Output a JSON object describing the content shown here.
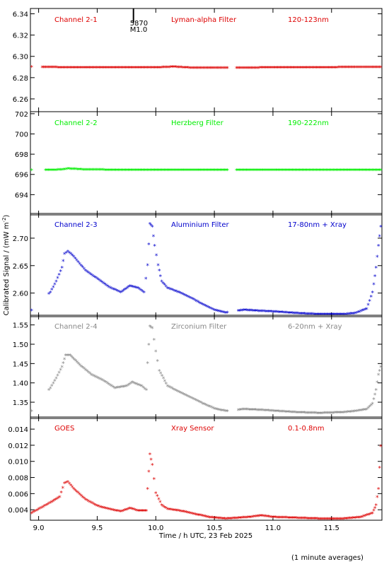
{
  "chart_data": {
    "type": "scatter",
    "xlabel": "Time / h UTC, 23 Feb 2025",
    "ylabel": "Calibrated Signal / (mW m",
    "ylabel_sup": "-2",
    "ylabel_end": ")",
    "footnote": "(1 minute averages)",
    "xlim": [
      8.93,
      11.93
    ],
    "xticks": [
      "9.0",
      "9.5",
      "10.0",
      "10.5",
      "11.0",
      "11.5"
    ],
    "flare_marker": {
      "x": 9.9,
      "label_top": "5870",
      "label_bottom": "M1.0"
    },
    "panels": [
      {
        "id": "ch1",
        "label": "Channel 2-1",
        "filter": "Lyman-alpha Filter",
        "band": "120-123nm",
        "color": "#dd0000",
        "ylim": [
          6.248,
          6.345
        ],
        "yticks": [
          "6.26",
          "6.28",
          "6.30",
          "6.32",
          "6.34"
        ],
        "points": [
          [
            8.94,
            6.2895
          ],
          [
            9.03,
            6.2892
          ],
          [
            9.06,
            6.2891
          ],
          [
            9.2,
            6.289
          ],
          [
            9.4,
            6.2889
          ],
          [
            9.6,
            6.2888
          ],
          [
            9.8,
            6.2888
          ],
          [
            10.0,
            6.2888
          ],
          [
            10.15,
            6.2895
          ],
          [
            10.3,
            6.2886
          ],
          [
            10.5,
            6.2885
          ],
          [
            10.6,
            6.2885
          ],
          [
            10.7,
            6.2886
          ],
          [
            10.9,
            6.2887
          ],
          [
            11.1,
            6.2888
          ],
          [
            11.3,
            6.2888
          ],
          [
            11.5,
            6.289
          ],
          [
            11.7,
            6.2891
          ],
          [
            11.92,
            6.2892
          ]
        ]
      },
      {
        "id": "ch2",
        "label": "Channel 2-2",
        "filter": "Herzberg Filter",
        "band": "190-222nm",
        "color": "#00ee00",
        "ylim": [
          692.0,
          702.2
        ],
        "yticks": [
          "694",
          "696",
          "698",
          "700",
          "702"
        ],
        "points": [
          [
            8.94,
            696.35
          ],
          [
            9.07,
            696.35
          ],
          [
            9.2,
            696.4
          ],
          [
            9.25,
            696.5
          ],
          [
            9.4,
            696.4
          ],
          [
            9.6,
            696.38
          ],
          [
            9.8,
            696.38
          ],
          [
            10.0,
            696.36
          ],
          [
            10.3,
            696.35
          ],
          [
            10.6,
            696.35
          ],
          [
            10.7,
            696.36
          ],
          [
            11.0,
            696.36
          ],
          [
            11.3,
            696.36
          ],
          [
            11.6,
            696.36
          ],
          [
            11.92,
            696.36
          ]
        ]
      },
      {
        "id": "ch3",
        "label": "Channel 2-3",
        "filter": "Aluminium Filter",
        "band": "17-80nm + Xray",
        "color": "#0000cc",
        "ylim": [
          2.557,
          2.745
        ],
        "yticks": [
          "2.60",
          "2.65",
          "2.70"
        ],
        "points": [
          [
            8.94,
            2.567
          ],
          [
            9.1,
            2.6
          ],
          [
            9.15,
            2.62
          ],
          [
            9.2,
            2.645
          ],
          [
            9.22,
            2.67
          ],
          [
            9.25,
            2.675
          ],
          [
            9.3,
            2.665
          ],
          [
            9.4,
            2.64
          ],
          [
            9.5,
            2.625
          ],
          [
            9.6,
            2.61
          ],
          [
            9.7,
            2.6
          ],
          [
            9.78,
            2.612
          ],
          [
            9.85,
            2.608
          ],
          [
            9.9,
            2.6
          ],
          [
            9.93,
            2.65
          ],
          [
            9.95,
            2.725
          ],
          [
            9.97,
            2.72
          ],
          [
            9.99,
            2.685
          ],
          [
            10.02,
            2.65
          ],
          [
            10.05,
            2.62
          ],
          [
            10.1,
            2.608
          ],
          [
            10.2,
            2.6
          ],
          [
            10.3,
            2.59
          ],
          [
            10.4,
            2.578
          ],
          [
            10.5,
            2.568
          ],
          [
            10.6,
            2.563
          ],
          [
            10.75,
            2.568
          ],
          [
            10.9,
            2.566
          ],
          [
            11.0,
            2.565
          ],
          [
            11.2,
            2.562
          ],
          [
            11.4,
            2.56
          ],
          [
            11.6,
            2.56
          ],
          [
            11.7,
            2.562
          ],
          [
            11.8,
            2.57
          ],
          [
            11.85,
            2.6
          ],
          [
            11.88,
            2.645
          ],
          [
            11.9,
            2.685
          ],
          [
            11.92,
            2.72
          ]
        ]
      },
      {
        "id": "ch4",
        "label": "Channel 2-4",
        "filter": "Zirconium Filter",
        "band": "6-20nm + Xray",
        "color": "#888888",
        "ylim": [
          1.308,
          1.575
        ],
        "yticks": [
          "1.35",
          "1.40",
          "1.45",
          "1.50",
          "1.55"
        ],
        "points": [
          [
            8.94,
            1.325
          ],
          [
            9.1,
            1.385
          ],
          [
            9.15,
            1.41
          ],
          [
            9.2,
            1.44
          ],
          [
            9.23,
            1.47
          ],
          [
            9.27,
            1.47
          ],
          [
            9.35,
            1.445
          ],
          [
            9.45,
            1.42
          ],
          [
            9.55,
            1.405
          ],
          [
            9.65,
            1.385
          ],
          [
            9.75,
            1.39
          ],
          [
            9.8,
            1.4
          ],
          [
            9.88,
            1.39
          ],
          [
            9.92,
            1.38
          ],
          [
            9.93,
            1.45
          ],
          [
            9.95,
            1.545
          ],
          [
            9.97,
            1.54
          ],
          [
            10.0,
            1.48
          ],
          [
            10.03,
            1.43
          ],
          [
            10.1,
            1.39
          ],
          [
            10.2,
            1.375
          ],
          [
            10.3,
            1.36
          ],
          [
            10.4,
            1.345
          ],
          [
            10.5,
            1.332
          ],
          [
            10.6,
            1.325
          ],
          [
            10.75,
            1.33
          ],
          [
            10.9,
            1.328
          ],
          [
            11.0,
            1.326
          ],
          [
            11.2,
            1.322
          ],
          [
            11.4,
            1.32
          ],
          [
            11.6,
            1.322
          ],
          [
            11.7,
            1.325
          ],
          [
            11.8,
            1.33
          ],
          [
            11.85,
            1.345
          ],
          [
            11.88,
            1.38
          ],
          [
            11.9,
            1.42
          ],
          [
            11.92,
            1.44
          ]
        ]
      },
      {
        "id": "goes",
        "label": "GOES",
        "filter": "Xray Sensor",
        "band": "0.1-0.8nm",
        "color": "#dd0000",
        "ylim": [
          0.0027,
          0.0155
        ],
        "yticks": [
          "0.004",
          "0.006",
          "0.008",
          "0.010",
          "0.012",
          "0.014"
        ],
        "points": [
          [
            8.94,
            0.0035
          ],
          [
            9.1,
            0.0048
          ],
          [
            9.18,
            0.0055
          ],
          [
            9.22,
            0.0072
          ],
          [
            9.25,
            0.0074
          ],
          [
            9.3,
            0.0065
          ],
          [
            9.4,
            0.0052
          ],
          [
            9.5,
            0.0044
          ],
          [
            9.6,
            0.004
          ],
          [
            9.7,
            0.0037
          ],
          [
            9.78,
            0.0041
          ],
          [
            9.85,
            0.0038
          ],
          [
            9.92,
            0.0038
          ],
          [
            9.93,
            0.0065
          ],
          [
            9.95,
            0.0108
          ],
          [
            9.97,
            0.0095
          ],
          [
            10.0,
            0.006
          ],
          [
            10.05,
            0.0045
          ],
          [
            10.1,
            0.004
          ],
          [
            10.2,
            0.0038
          ],
          [
            10.3,
            0.0035
          ],
          [
            10.45,
            0.003
          ],
          [
            10.6,
            0.0028
          ],
          [
            10.8,
            0.003
          ],
          [
            10.9,
            0.0032
          ],
          [
            11.0,
            0.003
          ],
          [
            11.2,
            0.0029
          ],
          [
            11.4,
            0.0028
          ],
          [
            11.6,
            0.0028
          ],
          [
            11.75,
            0.003
          ],
          [
            11.85,
            0.0035
          ],
          [
            11.88,
            0.0045
          ],
          [
            11.9,
            0.0065
          ],
          [
            11.92,
            0.0118
          ]
        ]
      }
    ]
  }
}
